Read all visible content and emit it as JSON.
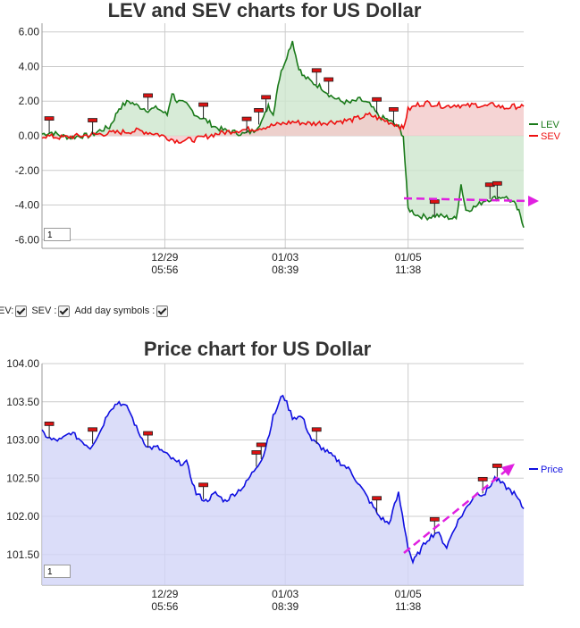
{
  "chart_data": [
    {
      "type": "line",
      "title": "LEV and SEV charts for US Dollar",
      "y_ticks": [
        "6.00",
        "4.00",
        "2.00",
        "0.00",
        "-2.00",
        "-4.00",
        "-6.00"
      ],
      "x_ticks": [
        {
          "date": "12/29",
          "time": "05:56"
        },
        {
          "date": "01/03",
          "time": "08:39"
        },
        {
          "date": "01/05",
          "time": "11:38"
        }
      ],
      "ylim": [
        -6.5,
        6.5
      ],
      "xlim": [
        0,
        100
      ],
      "grid": true,
      "legend_position": "right",
      "zoom_value": "1",
      "x_tick_positions": [
        25.5,
        50.5,
        76
      ],
      "series": [
        {
          "name": "LEV",
          "color": "#1a7a1a",
          "fill": "#cde6cd",
          "x": [
            0,
            2,
            4,
            6,
            8,
            10,
            12,
            14,
            15,
            16,
            18,
            20,
            22,
            24,
            26,
            27,
            28,
            30,
            32,
            34,
            36,
            38,
            40,
            42,
            44,
            46,
            47,
            48,
            49,
            50,
            52,
            53,
            54,
            56,
            58,
            60,
            62,
            64,
            66,
            68,
            70,
            72,
            74,
            75,
            76,
            78,
            80,
            82,
            84,
            86,
            87,
            88,
            90,
            92,
            94,
            96,
            98,
            99,
            100
          ],
          "values": [
            0.1,
            0.2,
            0.0,
            -0.1,
            0.0,
            0.0,
            0.3,
            0.5,
            1.0,
            1.6,
            2.0,
            1.7,
            1.5,
            1.6,
            1.2,
            2.5,
            2.0,
            1.8,
            1.2,
            0.9,
            0.5,
            0.3,
            0.2,
            0.1,
            0.3,
            1.0,
            1.8,
            1.2,
            3.0,
            4.0,
            5.5,
            4.2,
            3.5,
            3.1,
            2.8,
            2.3,
            2.0,
            1.9,
            2.1,
            1.8,
            1.1,
            0.9,
            0.5,
            0.0,
            -4.2,
            -4.6,
            -4.7,
            -4.6,
            -4.7,
            -4.8,
            -2.8,
            -4.3,
            -4.1,
            -3.7,
            -3.6,
            -3.5,
            -3.9,
            -4.4,
            -5.3
          ]
        },
        {
          "name": "SEV",
          "color": "#ee1111",
          "fill": "#f3c9c9",
          "x": [
            0,
            4,
            8,
            12,
            16,
            20,
            24,
            28,
            32,
            36,
            40,
            44,
            48,
            52,
            56,
            60,
            64,
            68,
            70,
            72,
            74,
            75,
            76,
            78,
            80,
            82,
            84,
            86,
            88,
            90,
            92,
            94,
            96,
            98,
            100
          ],
          "values": [
            0.0,
            -0.1,
            0.0,
            0.1,
            0.2,
            0.3,
            0.1,
            -0.3,
            -0.2,
            0.1,
            0.3,
            0.4,
            0.6,
            0.8,
            0.7,
            0.8,
            0.9,
            1.2,
            1.0,
            0.8,
            0.6,
            0.4,
            1.5,
            1.8,
            1.9,
            1.8,
            1.7,
            1.8,
            1.7,
            1.8,
            1.7,
            1.8,
            1.6,
            1.7,
            1.7
          ]
        }
      ],
      "day_symbol_x": [
        1.5,
        10.5,
        22,
        33.5,
        42.5,
        45,
        46.5,
        57,
        59.5,
        69.5,
        73,
        81.5,
        93,
        94.5
      ]
    },
    {
      "type": "line",
      "title": "Price chart for US Dollar",
      "y_ticks": [
        "104.00",
        "103.50",
        "103.00",
        "102.50",
        "102.00",
        "101.50"
      ],
      "x_ticks": [
        {
          "date": "12/29",
          "time": "05:56"
        },
        {
          "date": "01/03",
          "time": "08:39"
        },
        {
          "date": "01/05",
          "time": "11:38"
        }
      ],
      "ylim": [
        101.1,
        104.0
      ],
      "xlim": [
        0,
        100
      ],
      "grid": true,
      "legend_position": "right",
      "zoom_value": "1",
      "x_tick_positions": [
        25.5,
        50.5,
        76
      ],
      "series": [
        {
          "name": "Price",
          "color": "#1010e0",
          "fill": "#d2d4f8",
          "x": [
            0,
            2,
            4,
            6,
            8,
            10,
            12,
            14,
            16,
            18,
            20,
            22,
            24,
            26,
            28,
            30,
            32,
            34,
            36,
            38,
            40,
            42,
            44,
            46,
            48,
            50,
            52,
            54,
            56,
            58,
            60,
            62,
            64,
            66,
            68,
            70,
            72,
            74,
            76,
            77,
            78,
            80,
            82,
            84,
            86,
            88,
            90,
            92,
            94,
            96,
            98,
            100
          ],
          "values": [
            103.1,
            103.0,
            103.0,
            103.1,
            103.0,
            102.9,
            103.1,
            103.4,
            103.5,
            103.4,
            103.1,
            102.9,
            102.9,
            102.8,
            102.7,
            102.7,
            102.3,
            102.2,
            102.3,
            102.2,
            102.3,
            102.4,
            102.6,
            102.8,
            103.3,
            103.6,
            103.3,
            103.3,
            103.0,
            102.9,
            102.8,
            102.7,
            102.6,
            102.4,
            102.2,
            102.0,
            101.9,
            102.3,
            101.6,
            101.4,
            101.5,
            101.7,
            101.8,
            101.6,
            101.9,
            102.1,
            102.3,
            102.3,
            102.5,
            102.4,
            102.3,
            102.1
          ]
        }
      ],
      "day_symbol_x": [
        1.5,
        10.5,
        22,
        33.5,
        44.5,
        45.5,
        57,
        69.5,
        81.5,
        91.5,
        94.5
      ]
    }
  ],
  "controls": {
    "lev_label": "EV:",
    "sev_label": "SEV :",
    "day_symbols_label": "Add day symbols :"
  }
}
